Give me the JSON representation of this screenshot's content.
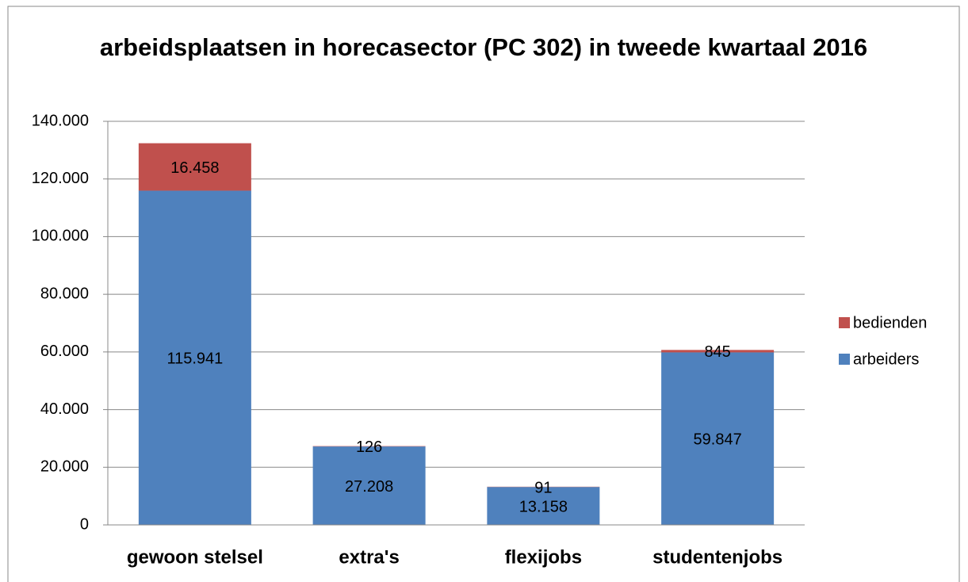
{
  "chart_data": {
    "type": "bar",
    "stacked": true,
    "title": "arbeidsplaatsen in horecasector (PC 302) in tweede kwartaal 2016",
    "categories": [
      "gewoon stelsel",
      "extra's",
      "flexijobs",
      "studentenjobs"
    ],
    "series": [
      {
        "name": "arbeiders",
        "color": "#4f81bd",
        "values": [
          115941,
          27208,
          13158,
          59847
        ],
        "value_labels": [
          "115.941",
          "27.208",
          "13.158",
          "59.847"
        ]
      },
      {
        "name": "bedienden",
        "color": "#c0504d",
        "values": [
          16458,
          126,
          91,
          845
        ],
        "value_labels": [
          "16.458",
          "126",
          "91",
          "845"
        ]
      }
    ],
    "ylim": [
      0,
      140000
    ],
    "yticks": [
      0,
      {
        "value": 20000,
        "label": "20.000"
      },
      {
        "value": 40000,
        "label": "40.000"
      },
      {
        "value": 60000,
        "label": "60.000"
      },
      {
        "value": 80000,
        "label": "80.000"
      },
      {
        "value": 100000,
        "label": "100.000"
      },
      {
        "value": 120000,
        "label": "120.000"
      },
      {
        "value": 140000,
        "label": "140.000"
      }
    ],
    "grid": true,
    "legend": "right"
  }
}
